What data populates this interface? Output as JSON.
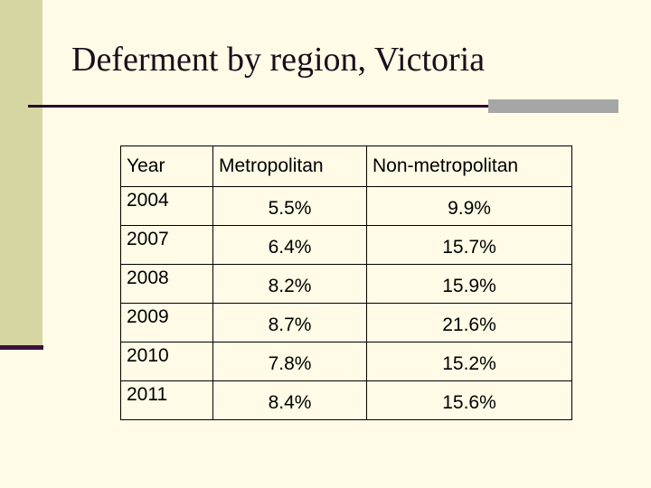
{
  "slide": {
    "title": "Deferment by region, Victoria"
  },
  "table": {
    "headers": [
      "Year",
      "Metropolitan",
      "Non-metropolitan"
    ],
    "rows": [
      [
        "2004",
        "5.5%",
        "9.9%"
      ],
      [
        "2007",
        "6.4%",
        "15.7%"
      ],
      [
        "2008",
        "8.2%",
        "15.9%"
      ],
      [
        "2009",
        "8.7%",
        "21.6%"
      ],
      [
        "2010",
        "7.8%",
        "15.2%"
      ],
      [
        "2011",
        "8.4%",
        "15.6%"
      ]
    ]
  },
  "colors": {
    "background": "#fffbe6",
    "side_bar": "#d6d6a3",
    "rule": "#2a0a26",
    "rule_accent": "#a6a6a6"
  }
}
